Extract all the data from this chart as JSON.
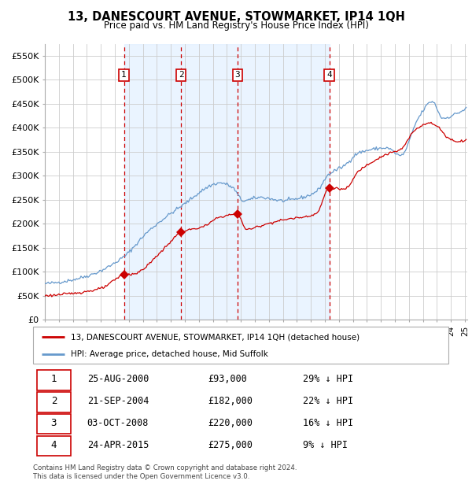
{
  "title": "13, DANESCOURT AVENUE, STOWMARKET, IP14 1QH",
  "subtitle": "Price paid vs. HM Land Registry's House Price Index (HPI)",
  "sale_dates": [
    "2000-08-25",
    "2004-09-21",
    "2008-10-03",
    "2015-04-24"
  ],
  "sale_prices": [
    93000,
    182000,
    220000,
    275000
  ],
  "sale_labels": [
    "1",
    "2",
    "3",
    "4"
  ],
  "legend_price_paid": "13, DANESCOURT AVENUE, STOWMARKET, IP14 1QH (detached house)",
  "legend_hpi": "HPI: Average price, detached house, Mid Suffolk",
  "table_rows": [
    {
      "label": "1",
      "date": "25-AUG-2000",
      "price": "£93,000",
      "hpi": "29% ↓ HPI"
    },
    {
      "label": "2",
      "date": "21-SEP-2004",
      "price": "£182,000",
      "hpi": "22% ↓ HPI"
    },
    {
      "label": "3",
      "date": "03-OCT-2008",
      "price": "£220,000",
      "hpi": "16% ↓ HPI"
    },
    {
      "label": "4",
      "date": "24-APR-2015",
      "price": "£275,000",
      "hpi": "9% ↓ HPI"
    }
  ],
  "footer": "Contains HM Land Registry data © Crown copyright and database right 2024.\nThis data is licensed under the Open Government Licence v3.0.",
  "ylim": [
    0,
    575000
  ],
  "yticks": [
    0,
    50000,
    100000,
    150000,
    200000,
    250000,
    300000,
    350000,
    400000,
    450000,
    500000,
    550000
  ],
  "ytick_labels": [
    "£0",
    "£50K",
    "£100K",
    "£150K",
    "£200K",
    "£250K",
    "£300K",
    "£350K",
    "£400K",
    "£450K",
    "£500K",
    "£550K"
  ],
  "price_line_color": "#cc0000",
  "hpi_line_color": "#6699cc",
  "marker_color": "#cc0000",
  "vline_color_red": "#cc0000",
  "background_shading": "#ddeeff",
  "grid_color": "#cccccc",
  "box_color": "#cc0000"
}
